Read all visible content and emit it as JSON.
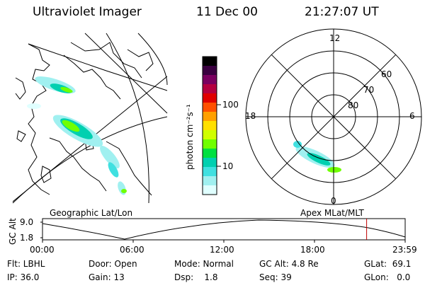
{
  "header": {
    "title": "Ultraviolet Imager",
    "date": "11 Dec 00",
    "time": "21:27:07 UT"
  },
  "geo_panel": {
    "label": "Geographic Lat/Lon"
  },
  "colorbar": {
    "label": "photon cm⁻²s⁻¹",
    "ticks": [
      "100",
      "10"
    ],
    "colors": [
      "#000000",
      "#3a0040",
      "#7a0060",
      "#b40040",
      "#e00000",
      "#ff5000",
      "#ffa000",
      "#ffe000",
      "#d0ff00",
      "#70ff00",
      "#00e040",
      "#00d0b0",
      "#40e0e0",
      "#a0f0f0",
      "#e0ffff"
    ]
  },
  "polar_panel": {
    "label": "Apex MLat/MLT",
    "mlt_labels": {
      "top": "12",
      "bottom": "0",
      "left": "18",
      "right": "6"
    },
    "lat_labels": [
      "60",
      "70",
      "80"
    ]
  },
  "altitude_plot": {
    "ylabel": "GC Alt",
    "yticks": [
      "9.0",
      "1.8"
    ],
    "xticks": [
      "00:00",
      "06:00",
      "12:00",
      "18:00",
      "23:59"
    ],
    "current_time_hours": 21.45
  },
  "footer": {
    "filter": "Flt: LBHL",
    "ip": "IP: 36.0",
    "door": "Door: Open",
    "gain": "Gain: 13",
    "mode": "Mode: Normal",
    "dsp": "Dsp:    1.8",
    "gc_alt": "GC Alt: 4.8 Re",
    "seq": "Seq: 39",
    "glat": "GLat:  69.1",
    "glon": "GLon:   0.0"
  }
}
